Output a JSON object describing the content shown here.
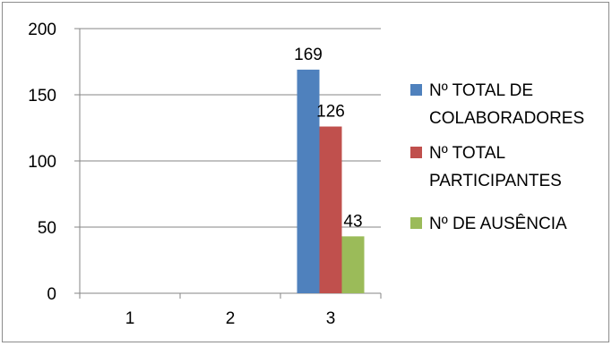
{
  "chart_data": {
    "type": "bar",
    "categories": [
      "1",
      "2",
      "3"
    ],
    "ylim": [
      0,
      200
    ],
    "yticks": [
      0,
      50,
      100,
      150,
      200
    ],
    "grid": true,
    "legend_position": "right",
    "series": [
      {
        "name": "Nº TOTAL DE COLABORADORES",
        "legend_lines": [
          "Nº TOTAL DE",
          "COLABORADORES"
        ],
        "color": "#4f81bd",
        "values": [
          null,
          null,
          169
        ]
      },
      {
        "name": "Nº TOTAL PARTICIPANTES",
        "legend_lines": [
          "Nº TOTAL",
          "PARTICIPANTES"
        ],
        "color": "#c0504d",
        "values": [
          null,
          null,
          126
        ]
      },
      {
        "name": "Nº DE AUSÊNCIA",
        "legend_lines": [
          "Nº DE AUSÊNCIA"
        ],
        "color": "#9bbb59",
        "values": [
          null,
          null,
          43
        ]
      }
    ]
  }
}
